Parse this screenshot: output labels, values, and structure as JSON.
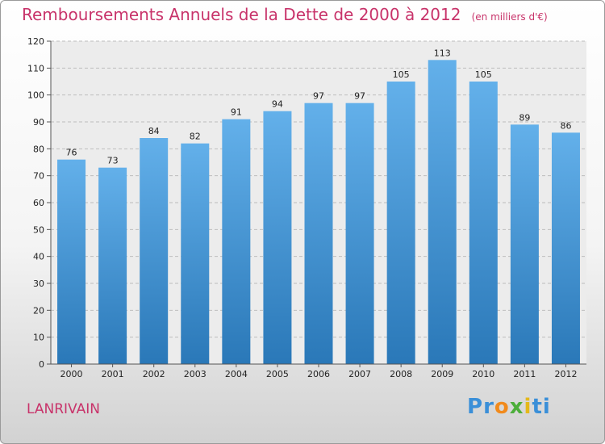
{
  "chart_data": {
    "type": "bar",
    "title": "Remboursements Annuels de la Dette de 2000 à 2012",
    "subtitle": "(en milliers d'€)",
    "categories": [
      "2000",
      "2001",
      "2002",
      "2003",
      "2004",
      "2005",
      "2006",
      "2007",
      "2008",
      "2009",
      "2010",
      "2011",
      "2012"
    ],
    "values": [
      76,
      73,
      84,
      82,
      91,
      94,
      97,
      97,
      105,
      113,
      105,
      89,
      86
    ],
    "ylim": [
      0,
      120
    ],
    "yticks": [
      0,
      10,
      20,
      30,
      40,
      50,
      60,
      70,
      80,
      90,
      100,
      110,
      120
    ],
    "grid": true,
    "xlabel": "",
    "ylabel": ""
  },
  "commune": "LANRIVAIN",
  "logo": {
    "text": "Proxiti",
    "letters": [
      "P",
      "r",
      "o",
      "x",
      "i",
      "t",
      "i"
    ],
    "colors": [
      "#3a8fd8",
      "#3a8fd8",
      "#f18a1c",
      "#4cae3a",
      "#e4b81a",
      "#3a8fd8",
      "#3a8fd8"
    ]
  },
  "colors": {
    "bar_top": "#63b0ea",
    "bar_bottom": "#2a78b8",
    "title": "#c8336a"
  }
}
